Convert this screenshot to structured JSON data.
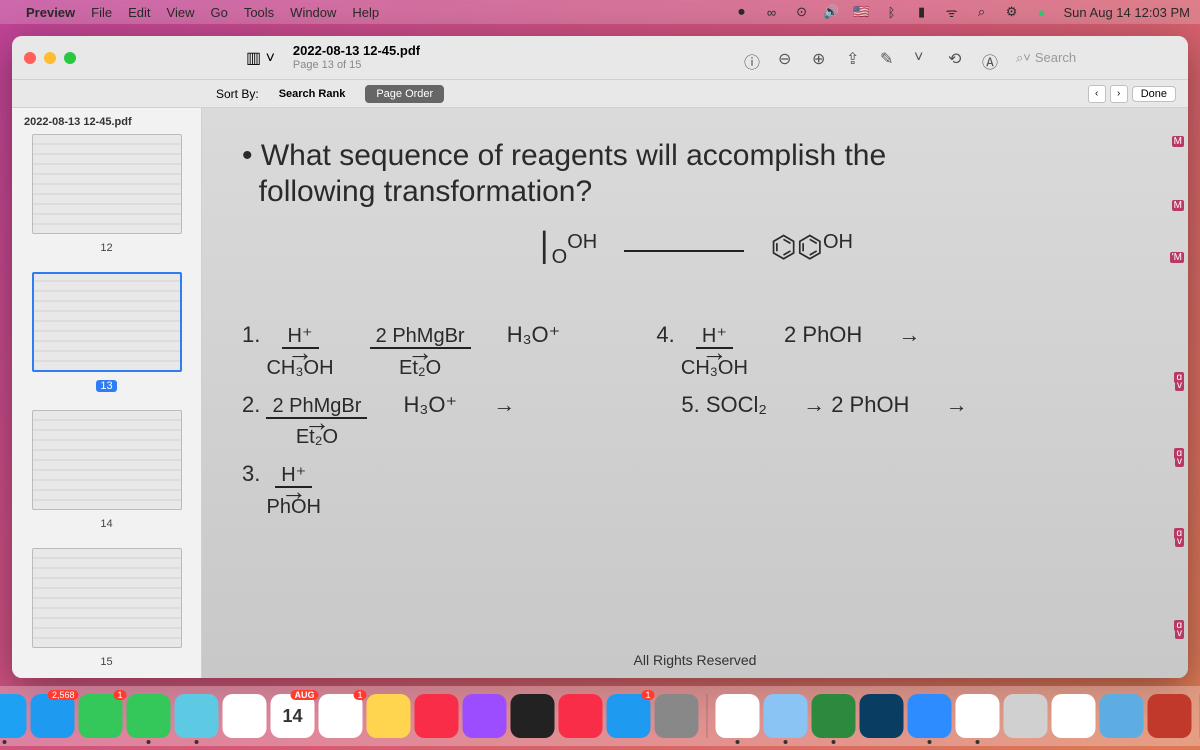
{
  "menubar": {
    "app": "Preview",
    "items": [
      "File",
      "Edit",
      "View",
      "Go",
      "Tools",
      "Window",
      "Help"
    ],
    "clock": "Sun Aug 14  12:03 PM",
    "status_icons": [
      "camera",
      "infinity",
      "record",
      "volume",
      "flag-us",
      "bluetooth",
      "battery",
      "wifi",
      "search",
      "control-center",
      "dot"
    ]
  },
  "window": {
    "title": "2022-08-13 12-45.pdf",
    "subtitle": "Page 13 of 15",
    "traffic_colors": [
      "#ff5f57",
      "#febc2e",
      "#28c840"
    ],
    "toolbar_icons": [
      "sidebar-toggle",
      "info",
      "zoom-out",
      "zoom-in",
      "share",
      "markup",
      "chevron",
      "rotate",
      "highlight"
    ],
    "search_placeholder": "Search"
  },
  "sortbar": {
    "label": "Sort By:",
    "options": [
      "Search Rank",
      "Page Order"
    ],
    "active": "Page Order",
    "nav": [
      "‹",
      "›"
    ],
    "done": "Done"
  },
  "sidebar": {
    "title": "2022-08-13 12-45.pdf",
    "thumbs": [
      {
        "num": "12",
        "selected": false
      },
      {
        "num": "13",
        "selected": true
      },
      {
        "num": "14",
        "selected": false
      },
      {
        "num": "15",
        "selected": false
      }
    ]
  },
  "content": {
    "question_l1": "What sequence of reagents will accomplish the",
    "question_l2": "following transformation?",
    "scheme_left_top": "OH",
    "scheme_left_bot": "O",
    "scheme_right": "OH",
    "opt1_num": "1.",
    "opt1a_top": "H⁺",
    "opt1a_bot": "CH₃OH",
    "opt1b_top": "2 PhMgBr",
    "opt1b_bot": "Et₂O",
    "opt1c": "H₃O⁺",
    "opt2_num": "2.",
    "opt2a_top": "2 PhMgBr",
    "opt2a_bot": "Et₂O",
    "opt2b": "H₃O⁺",
    "opt3_num": "3.",
    "opt3a_top": "H⁺",
    "opt3a_bot": "PhOH",
    "opt4_num": "4.",
    "opt4a_top": "H⁺",
    "opt4a_bot": "CH₃OH",
    "opt4b": "2 PhOH",
    "opt5_num": "5.",
    "opt5a": "SOCl₂",
    "opt5b": "2 PhOH",
    "footer": "All Rights Reserved",
    "margin": [
      "M",
      "M",
      "'M",
      "g",
      "v",
      "g",
      "v",
      "g",
      "v",
      "g",
      "v"
    ]
  },
  "dock": {
    "apps": [
      {
        "name": "finder",
        "color": "#1e9bf0",
        "running": true
      },
      {
        "name": "launchpad",
        "color": "#e5e5e5"
      },
      {
        "name": "safari",
        "color": "#1da1f2",
        "running": true
      },
      {
        "name": "mail",
        "color": "#1e9bf0",
        "badge": "2,568"
      },
      {
        "name": "messages",
        "color": "#34c759",
        "badge": "1"
      },
      {
        "name": "facetime",
        "color": "#34c759",
        "running": true
      },
      {
        "name": "atom",
        "color": "#5dc9e2",
        "running": true
      },
      {
        "name": "photos",
        "color": "#fff"
      },
      {
        "name": "calendar",
        "color": "#fff",
        "badge": "AUG",
        "text": "14"
      },
      {
        "name": "reminders",
        "color": "#fff",
        "badge": "1"
      },
      {
        "name": "notes",
        "color": "#ffd54f"
      },
      {
        "name": "music",
        "color": "#fa2d48"
      },
      {
        "name": "podcasts",
        "color": "#9b4dff"
      },
      {
        "name": "tv",
        "color": "#222"
      },
      {
        "name": "news",
        "color": "#fa2d48"
      },
      {
        "name": "appstore",
        "color": "#1e9bf0",
        "badge": "1"
      },
      {
        "name": "settings",
        "color": "#888"
      }
    ],
    "apps2": [
      {
        "name": "chrome",
        "color": "#fff",
        "running": true
      },
      {
        "name": "preview",
        "color": "#89c4f4",
        "running": true
      },
      {
        "name": "app-m",
        "color": "#2b8a3e",
        "running": true
      },
      {
        "name": "app-n",
        "color": "#0a3d62"
      },
      {
        "name": "zoom",
        "color": "#2d8cff",
        "running": true
      },
      {
        "name": "video",
        "color": "#fff",
        "running": true
      },
      {
        "name": "printer",
        "color": "#d0d0d0"
      },
      {
        "name": "palette",
        "color": "#fff"
      },
      {
        "name": "book",
        "color": "#5dade2"
      },
      {
        "name": "tablet",
        "color": "#c0392b"
      }
    ],
    "apps3": [
      {
        "name": "downloads",
        "color": "#aac"
      }
    ],
    "trash": {
      "name": "trash",
      "color": "#ddd"
    }
  }
}
